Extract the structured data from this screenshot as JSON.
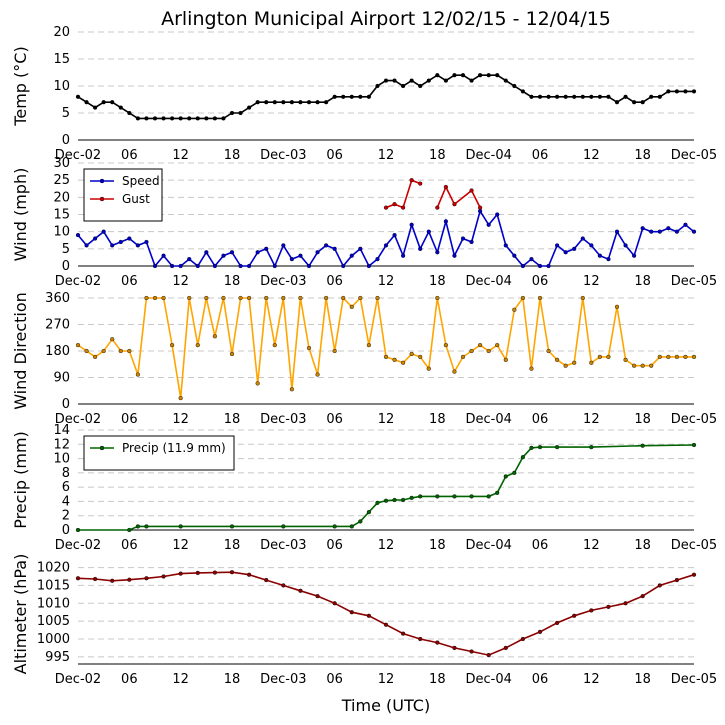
{
  "chart_data": {
    "type": "line",
    "title": "Arlington Municipal Airport 12/02/15 - 12/04/15",
    "xlabel": "Time (UTC)",
    "x_hours_range": [
      0,
      72
    ],
    "x_tick_hours": [
      0,
      6,
      12,
      18,
      24,
      30,
      36,
      42,
      48,
      54,
      60,
      66,
      72
    ],
    "x_tick_labels": [
      "Dec-02",
      "06",
      "12",
      "18",
      "Dec-03",
      "06",
      "12",
      "18",
      "Dec-04",
      "06",
      "12",
      "18",
      "Dec-05"
    ],
    "panels": [
      {
        "ylabel": "Temp (°C)",
        "ylim": [
          0,
          20
        ],
        "yticks": [
          0,
          5,
          10,
          15,
          20
        ],
        "series": [
          {
            "name": "Temp",
            "color": "#000000",
            "marker": "#000000",
            "x": [
              0,
              1,
              2,
              3,
              4,
              5,
              6,
              7,
              8,
              9,
              10,
              11,
              12,
              13,
              14,
              15,
              16,
              17,
              18,
              19,
              20,
              21,
              22,
              23,
              24,
              25,
              26,
              27,
              28,
              29,
              30,
              31,
              32,
              33,
              34,
              35,
              36,
              37,
              38,
              39,
              40,
              41,
              42,
              43,
              44,
              45,
              46,
              47,
              48,
              49,
              50,
              51,
              52,
              53,
              54,
              55,
              56,
              57,
              58,
              59,
              60,
              61,
              62,
              63,
              64,
              65,
              66,
              67,
              68,
              69,
              70,
              71,
              72
            ],
            "y": [
              8,
              7,
              6,
              7,
              7,
              6,
              5,
              4,
              4,
              4,
              4,
              4,
              4,
              4,
              4,
              4,
              4,
              4,
              5,
              5,
              6,
              7,
              7,
              7,
              7,
              7,
              7,
              7,
              7,
              7,
              8,
              8,
              8,
              8,
              8,
              10,
              11,
              11,
              10,
              11,
              10,
              11,
              12,
              11,
              12,
              12,
              11,
              12,
              12,
              12,
              11,
              10,
              9,
              8,
              8,
              8,
              8,
              8,
              8,
              8,
              8,
              8,
              8,
              7,
              8,
              7,
              7,
              8,
              8,
              9,
              9,
              9,
              9
            ]
          }
        ]
      },
      {
        "ylabel": "Wind (mph)",
        "ylim": [
          0,
          30
        ],
        "yticks": [
          0,
          5,
          10,
          15,
          20,
          25,
          30
        ],
        "legend": [
          "Speed",
          "Gust"
        ],
        "series": [
          {
            "name": "Speed",
            "color": "#0000cc",
            "marker": "#0000cc",
            "x": [
              0,
              1,
              2,
              3,
              4,
              5,
              6,
              7,
              8,
              9,
              10,
              11,
              12,
              13,
              14,
              15,
              16,
              17,
              18,
              19,
              20,
              21,
              22,
              23,
              24,
              25,
              26,
              27,
              28,
              29,
              30,
              31,
              32,
              33,
              34,
              35,
              36,
              37,
              38,
              39,
              40,
              41,
              42,
              43,
              44,
              45,
              46,
              47,
              48,
              49,
              50,
              51,
              52,
              53,
              54,
              55,
              56,
              57,
              58,
              59,
              60,
              61,
              62,
              63,
              64,
              65,
              66,
              67,
              68,
              69,
              70,
              71,
              72
            ],
            "y": [
              9,
              6,
              8,
              10,
              6,
              7,
              8,
              6,
              7,
              0,
              3,
              0,
              0,
              2,
              0,
              4,
              0,
              3,
              4,
              0,
              0,
              4,
              5,
              0,
              6,
              2,
              3,
              0,
              4,
              6,
              5,
              0,
              3,
              5,
              0,
              2,
              6,
              9,
              3,
              12,
              5,
              10,
              4,
              13,
              3,
              8,
              7,
              16,
              12,
              15,
              6,
              3,
              0,
              2,
              0,
              0,
              6,
              4,
              5,
              8,
              6,
              3,
              2,
              10,
              6,
              3,
              11,
              10,
              10,
              11,
              10,
              12,
              10
            ]
          },
          {
            "name": "Gust",
            "color": "#cc0000",
            "marker": "#cc0000",
            "x": [
              36,
              37,
              38,
              39,
              40,
              41,
              42,
              43,
              44,
              46,
              47
            ],
            "y": [
              17,
              18,
              17,
              25,
              24,
              null,
              17,
              23,
              18,
              22,
              17
            ]
          }
        ]
      },
      {
        "ylabel": "Wind Direction",
        "ylim": [
          0,
          360
        ],
        "yticks": [
          0,
          90,
          180,
          270,
          360
        ],
        "series": [
          {
            "name": "Direction",
            "color": "#ffa500",
            "marker": "#cc8400",
            "x": [
              0,
              1,
              2,
              3,
              4,
              5,
              6,
              7,
              8,
              9,
              10,
              11,
              12,
              13,
              14,
              15,
              16,
              17,
              18,
              19,
              20,
              21,
              22,
              23,
              24,
              25,
              26,
              27,
              28,
              29,
              30,
              31,
              32,
              33,
              34,
              35,
              36,
              37,
              38,
              39,
              40,
              41,
              42,
              43,
              44,
              45,
              46,
              47,
              48,
              49,
              50,
              51,
              52,
              53,
              54,
              55,
              56,
              57,
              58,
              59,
              60,
              61,
              62,
              63,
              64,
              65,
              66,
              67,
              68,
              69,
              70,
              71,
              72
            ],
            "y": [
              200,
              180,
              160,
              180,
              220,
              180,
              180,
              100,
              360,
              360,
              360,
              200,
              20,
              360,
              200,
              360,
              230,
              360,
              170,
              360,
              360,
              70,
              360,
              200,
              360,
              50,
              360,
              190,
              100,
              360,
              180,
              360,
              330,
              360,
              200,
              360,
              160,
              150,
              140,
              170,
              160,
              120,
              360,
              200,
              110,
              160,
              180,
              200,
              180,
              200,
              150,
              320,
              360,
              120,
              360,
              180,
              150,
              130,
              140,
              360,
              140,
              160,
              160,
              330,
              150,
              130,
              130,
              130,
              160,
              160,
              160,
              160,
              160
            ]
          }
        ]
      },
      {
        "ylabel": "Precip (mm)",
        "ylim": [
          0,
          14
        ],
        "yticks": [
          0,
          2,
          4,
          6,
          8,
          10,
          12,
          14
        ],
        "legend": [
          "Precip (11.9 mm)"
        ],
        "series": [
          {
            "name": "Precip (11.9 mm)",
            "color": "#006400",
            "marker": "#006400",
            "x": [
              0,
              6,
              7,
              8,
              12,
              18,
              24,
              30,
              32,
              33,
              34,
              35,
              36,
              37,
              38,
              39,
              40,
              42,
              44,
              46,
              48,
              49,
              50,
              51,
              52,
              53,
              54,
              56,
              60,
              66,
              72
            ],
            "y": [
              0,
              0,
              0.5,
              0.5,
              0.5,
              0.5,
              0.5,
              0.5,
              0.5,
              1.2,
              2.5,
              3.8,
              4.1,
              4.2,
              4.2,
              4.5,
              4.7,
              4.7,
              4.7,
              4.7,
              4.7,
              5.2,
              7.5,
              8.0,
              10.2,
              11.5,
              11.6,
              11.6,
              11.6,
              11.8,
              11.9
            ]
          }
        ]
      },
      {
        "ylabel": "Altimeter (hPa)",
        "ylim": [
          993,
          1021
        ],
        "yticks": [
          995,
          1000,
          1005,
          1010,
          1015,
          1020
        ],
        "series": [
          {
            "name": "Altimeter",
            "color": "#8b0000",
            "marker": "#8b0000",
            "x": [
              0,
              2,
              4,
              6,
              8,
              10,
              12,
              14,
              16,
              18,
              20,
              22,
              24,
              26,
              28,
              30,
              32,
              34,
              36,
              38,
              40,
              42,
              44,
              46,
              48,
              50,
              52,
              54,
              56,
              58,
              60,
              62,
              64,
              66,
              68,
              70,
              72
            ],
            "y": [
              1017,
              1016.8,
              1016.3,
              1016.6,
              1017,
              1017.5,
              1018.3,
              1018.5,
              1018.6,
              1018.7,
              1018,
              1016.5,
              1015,
              1013.5,
              1012,
              1010,
              1007.5,
              1006.5,
              1004,
              1001.5,
              1000,
              999,
              997.5,
              996.5,
              995.5,
              997.5,
              1000,
              1002,
              1004.5,
              1006.5,
              1008,
              1009,
              1010,
              1012,
              1015,
              1016.5,
              1018
            ]
          }
        ]
      }
    ]
  }
}
